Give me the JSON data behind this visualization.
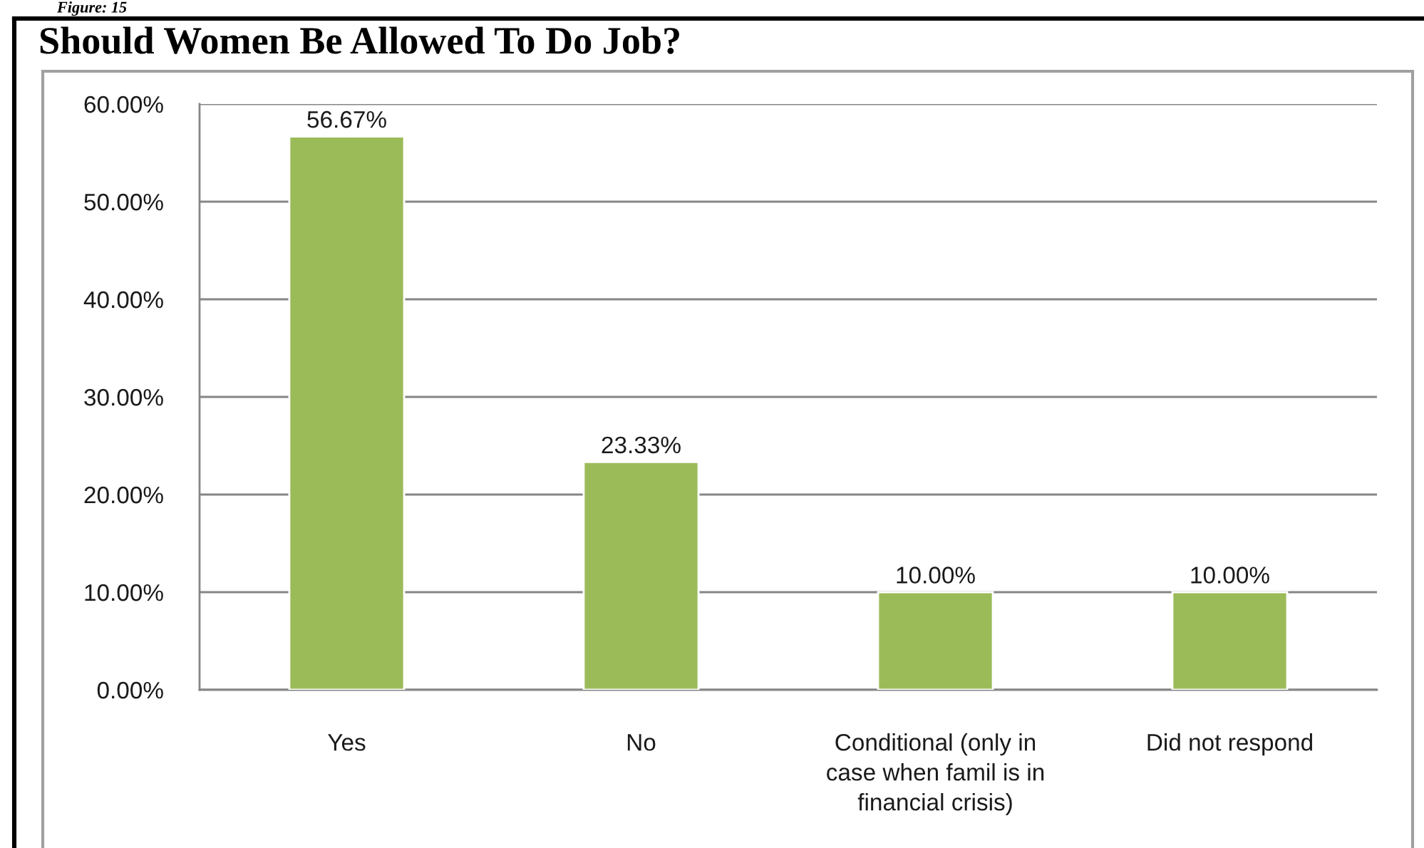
{
  "chart_data": {
    "type": "bar",
    "title": "Should Women Be Allowed To Do Job?",
    "annotations": [
      "Figure: 15"
    ],
    "categories": [
      "Yes",
      "No",
      "Conditional (only in\ncase when famil is in\nfinancial crisis)",
      "Did not respond"
    ],
    "values": [
      56.67,
      23.33,
      10.0,
      10.0
    ],
    "value_labels": [
      "56.67%",
      "23.33%",
      "10.00%",
      "10.00%"
    ],
    "color": "#9bbb59",
    "ylim": [
      0,
      60
    ],
    "yticks": [
      {
        "value": 0,
        "label": "0.00%"
      },
      {
        "value": 10,
        "label": "10.00%"
      },
      {
        "value": 20,
        "label": "20.00%"
      },
      {
        "value": 30,
        "label": "30.00%"
      },
      {
        "value": 40,
        "label": "40.00%"
      },
      {
        "value": 50,
        "label": "50.00%"
      },
      {
        "value": 60,
        "label": "60.00%"
      }
    ],
    "grid": "y"
  }
}
